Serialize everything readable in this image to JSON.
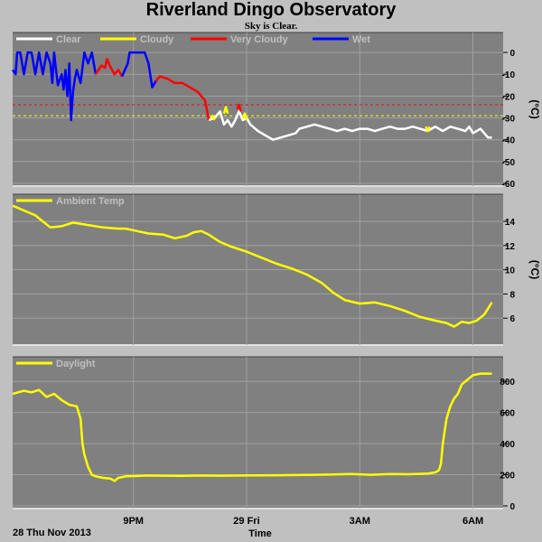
{
  "title": "Riverland Dingo Observatory",
  "subtitle": "Sky is Clear.",
  "xaxis": {
    "label": "Time",
    "start_label": "28 Thu Nov 2013",
    "ticks": [
      {
        "t": 3.2,
        "label": "9PM"
      },
      {
        "t": 6.2,
        "label": "29 Fri"
      },
      {
        "t": 9.2,
        "label": "3AM"
      },
      {
        "t": 12.2,
        "label": "6AM"
      }
    ],
    "range": [
      0,
      13.0
    ]
  },
  "colors": {
    "background": "#c0c0c0",
    "plot": "#808080",
    "grid": "#a0a0a0",
    "clear": "#ffffff",
    "cloudy": "#ffff00",
    "very_cloudy": "#ff0000",
    "wet": "#0000ff",
    "ambient": "#ffff00",
    "daylight": "#ffff00",
    "legend_text": "#c0c0c0"
  },
  "chart_data": [
    {
      "type": "line",
      "ylabel": "(°C)",
      "ylim": [
        -60,
        5
      ],
      "yticks": [
        0,
        -10,
        -20,
        -30,
        -40,
        -50,
        -60
      ],
      "legend": [
        "Clear",
        "Cloudy",
        "Very Cloudy",
        "Wet"
      ],
      "thresholds": [
        {
          "name": "Very Cloudy",
          "value": -24,
          "color": "#ff0000"
        },
        {
          "name": "Cloudy",
          "value": -29,
          "color": "#ffff00"
        }
      ],
      "series": [
        {
          "name": "Wet",
          "x": [
            0.0,
            0.08,
            0.12,
            0.2,
            0.3,
            0.4,
            0.5,
            0.6,
            0.7,
            0.8,
            0.9,
            1.0,
            1.05,
            1.1,
            1.15,
            1.2,
            1.3,
            1.35,
            1.4,
            1.45,
            1.5,
            1.55,
            1.6,
            1.65,
            1.7,
            1.8,
            1.9,
            2.0,
            2.1,
            2.2
          ],
          "y": [
            -8,
            -10,
            0,
            0,
            -10,
            0,
            0,
            -10,
            0,
            -10,
            0,
            -5,
            -14,
            0,
            -8,
            -15,
            -10,
            -17,
            -8,
            -20,
            -5,
            -31,
            -18,
            -12,
            -8,
            -14,
            0,
            -5,
            0,
            -10
          ]
        },
        {
          "name": "Very Cloudy",
          "x": [
            2.2,
            2.35,
            2.45,
            2.5,
            2.6,
            2.7,
            2.8,
            2.9
          ],
          "y": [
            -10,
            -6,
            -7,
            -3,
            -7,
            -10,
            -8,
            -11
          ]
        },
        {
          "name": "Wet",
          "x": [
            2.9,
            3.05,
            3.1,
            3.2,
            3.3,
            3.5,
            3.6,
            3.7,
            3.8
          ],
          "y": [
            -11,
            -5,
            0,
            0,
            0,
            0,
            -5,
            -16,
            -13
          ]
        },
        {
          "name": "Very Cloudy",
          "x": [
            3.8,
            3.9,
            4.1,
            4.3,
            4.5,
            4.7,
            4.9,
            5.1,
            5.2
          ],
          "y": [
            -13,
            -11,
            -12,
            -14,
            -14,
            -16,
            -18,
            -22,
            -31
          ]
        },
        {
          "name": "Clear",
          "x": [
            5.2,
            5.35,
            5.5,
            5.6,
            5.7,
            5.8,
            5.9,
            6.0,
            6.1,
            6.2,
            6.3,
            6.5,
            6.7,
            6.9,
            7.1,
            7.3,
            7.5,
            7.6,
            7.8,
            8.0,
            8.2,
            8.4,
            8.6,
            8.8,
            9.0,
            9.2,
            9.4,
            9.6,
            9.8,
            10.0,
            10.2,
            10.4,
            10.6,
            10.8,
            11.0,
            11.2,
            11.4,
            11.6,
            11.8,
            12.0,
            12.1,
            12.2,
            12.4,
            12.6,
            12.7
          ],
          "y": [
            -31,
            -30,
            -27,
            -33,
            -31,
            -34,
            -31,
            -27,
            -31,
            -30,
            -33,
            -36,
            -38,
            -40,
            -39,
            -38,
            -37,
            -35,
            -34,
            -33,
            -34,
            -35,
            -36,
            -35,
            -36,
            -35,
            -35,
            -36,
            -35,
            -34,
            -35,
            -35,
            -34,
            -35,
            -36,
            -34,
            -36,
            -34,
            -35,
            -36,
            -34,
            -37,
            -35,
            -39,
            -39
          ]
        },
        {
          "name": "Cloudy",
          "x": [
            5.25,
            5.3,
            5.35
          ],
          "y": [
            -30,
            -29,
            -31
          ]
        },
        {
          "name": "Cloudy",
          "x": [
            5.6,
            5.65,
            5.7
          ],
          "y": [
            -28,
            -25,
            -28
          ]
        },
        {
          "name": "Very Cloudy",
          "x": [
            5.95,
            6.0,
            6.05
          ],
          "y": [
            -26,
            -24,
            -27
          ]
        },
        {
          "name": "Cloudy",
          "x": [
            6.1,
            6.15,
            6.2
          ],
          "y": [
            -30,
            -28,
            -31
          ]
        },
        {
          "name": "Cloudy",
          "x": [
            10.95,
            11.0,
            11.05
          ],
          "y": [
            -34,
            -36,
            -34
          ]
        }
      ]
    },
    {
      "type": "line",
      "ylabel": "(°C)",
      "ylim": [
        4,
        15.5
      ],
      "yticks": [
        14,
        12,
        10,
        8,
        6
      ],
      "legend": [
        "Ambient Temp"
      ],
      "series": [
        {
          "name": "Ambient Temp",
          "x": [
            0.0,
            0.3,
            0.6,
            0.8,
            1.0,
            1.3,
            1.6,
            2.0,
            2.4,
            2.8,
            3.0,
            3.3,
            3.6,
            4.0,
            4.3,
            4.6,
            4.8,
            5.0,
            5.2,
            5.5,
            5.8,
            6.2,
            6.6,
            7.0,
            7.4,
            7.8,
            8.2,
            8.5,
            8.8,
            9.2,
            9.6,
            10.0,
            10.4,
            10.8,
            11.2,
            11.5,
            11.7,
            11.9,
            12.1,
            12.3,
            12.5,
            12.7
          ],
          "y": [
            15.3,
            14.9,
            14.5,
            14.0,
            13.5,
            13.6,
            13.9,
            13.7,
            13.5,
            13.4,
            13.4,
            13.2,
            13.0,
            12.9,
            12.6,
            12.8,
            13.1,
            13.2,
            12.9,
            12.3,
            11.9,
            11.5,
            11.0,
            10.5,
            10.1,
            9.6,
            8.9,
            8.1,
            7.5,
            7.2,
            7.3,
            7.0,
            6.6,
            6.1,
            5.8,
            5.6,
            5.3,
            5.7,
            5.6,
            5.8,
            6.3,
            7.3
          ]
        }
      ]
    },
    {
      "type": "line",
      "ylabel": "",
      "ylim": [
        0,
        900
      ],
      "yticks": [
        800,
        600,
        400,
        200,
        0
      ],
      "legend": [
        "Daylight"
      ],
      "series": [
        {
          "name": "Daylight",
          "x": [
            0.0,
            0.3,
            0.5,
            0.7,
            0.9,
            1.1,
            1.3,
            1.5,
            1.7,
            1.8,
            1.85,
            1.9,
            2.0,
            2.1,
            2.2,
            2.4,
            2.6,
            2.7,
            2.8,
            3.0,
            3.3,
            3.6,
            4.0,
            4.5,
            5.0,
            5.5,
            6.0,
            6.5,
            7.0,
            7.5,
            8.0,
            8.5,
            9.0,
            9.5,
            10.0,
            10.5,
            11.0,
            11.2,
            11.3,
            11.35,
            11.4,
            11.5,
            11.6,
            11.7,
            11.8,
            11.9,
            12.0,
            12.2,
            12.4,
            12.7
          ],
          "y": [
            720,
            740,
            730,
            745,
            700,
            720,
            680,
            650,
            640,
            560,
            400,
            330,
            250,
            200,
            190,
            180,
            175,
            160,
            180,
            190,
            192,
            195,
            194,
            193,
            195,
            194,
            195,
            196,
            197,
            198,
            200,
            202,
            205,
            200,
            205,
            203,
            208,
            215,
            230,
            270,
            400,
            560,
            640,
            690,
            720,
            780,
            800,
            840,
            850,
            850
          ]
        }
      ]
    }
  ]
}
